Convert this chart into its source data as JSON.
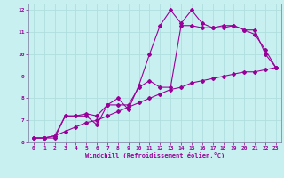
{
  "xlabel": "Windchill (Refroidissement éolien,°C)",
  "bg_color": "#c8f0f0",
  "grid_color": "#b0dede",
  "line_color": "#990099",
  "spine_color": "#777799",
  "x_values": [
    0,
    1,
    2,
    3,
    4,
    5,
    6,
    7,
    8,
    9,
    10,
    11,
    12,
    13,
    14,
    15,
    16,
    17,
    18,
    19,
    20,
    21,
    22,
    23
  ],
  "line1": [
    6.2,
    6.2,
    6.2,
    7.2,
    7.2,
    7.2,
    6.8,
    7.7,
    8.0,
    7.5,
    8.6,
    10.0,
    11.3,
    12.0,
    11.4,
    12.0,
    11.4,
    11.2,
    11.2,
    11.3,
    11.1,
    10.9,
    10.2,
    9.4
  ],
  "line2": [
    6.2,
    6.2,
    6.3,
    7.2,
    7.2,
    7.3,
    7.2,
    7.7,
    7.7,
    7.7,
    8.5,
    8.8,
    8.5,
    8.5,
    11.3,
    11.3,
    11.2,
    11.2,
    11.3,
    11.3,
    11.1,
    11.1,
    10.0,
    9.4
  ],
  "line3": [
    6.2,
    6.2,
    6.3,
    6.5,
    6.7,
    6.9,
    7.0,
    7.2,
    7.4,
    7.6,
    7.8,
    8.0,
    8.2,
    8.4,
    8.5,
    8.7,
    8.8,
    8.9,
    9.0,
    9.1,
    9.2,
    9.2,
    9.3,
    9.4
  ],
  "ylim": [
    6,
    12.3
  ],
  "xlim": [
    -0.5,
    23.5
  ],
  "yticks": [
    6,
    7,
    8,
    9,
    10,
    11,
    12
  ],
  "xticks": [
    0,
    1,
    2,
    3,
    4,
    5,
    6,
    7,
    8,
    9,
    10,
    11,
    12,
    13,
    14,
    15,
    16,
    17,
    18,
    19,
    20,
    21,
    22,
    23
  ]
}
